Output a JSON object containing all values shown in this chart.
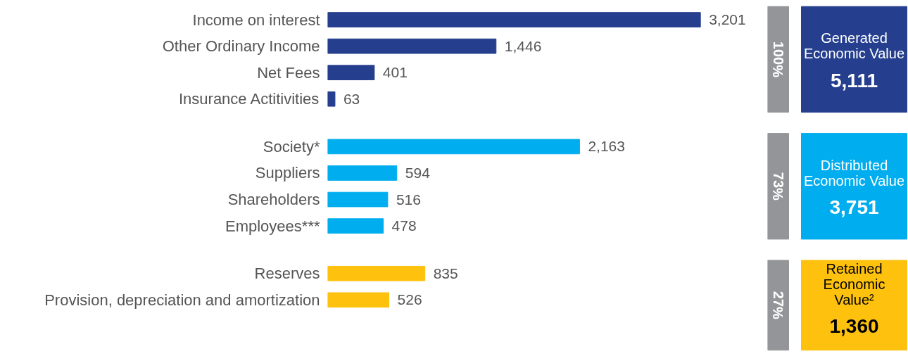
{
  "chart_data": {
    "type": "bar",
    "orientation": "horizontal",
    "categories": [
      "Income on interest",
      "Other Ordinary Income",
      "Net Fees",
      "Insurance Actitivities",
      "Society*",
      "Suppliers",
      "Shareholders",
      "Employees***",
      "Reserves",
      "Provision, depreciation and amortization"
    ],
    "values": [
      3201,
      1446,
      401,
      63,
      2163,
      594,
      516,
      478,
      835,
      526
    ],
    "value_labels": [
      "3,201",
      "1,446",
      "401",
      "63",
      "2,163",
      "594",
      "516",
      "478",
      "835",
      "526"
    ],
    "colors": [
      "#253f8e",
      "#253f8e",
      "#253f8e",
      "#253f8e",
      "#00adee",
      "#00adee",
      "#00adee",
      "#00adee",
      "#fdc10e",
      "#fdc10e"
    ],
    "annotations": [
      "100%",
      "Generated Economic Value",
      "5,111",
      "73%",
      "Distributed Economic Value",
      "3,751",
      "27%",
      "Retained Economic Value²",
      "1,360"
    ]
  }
}
